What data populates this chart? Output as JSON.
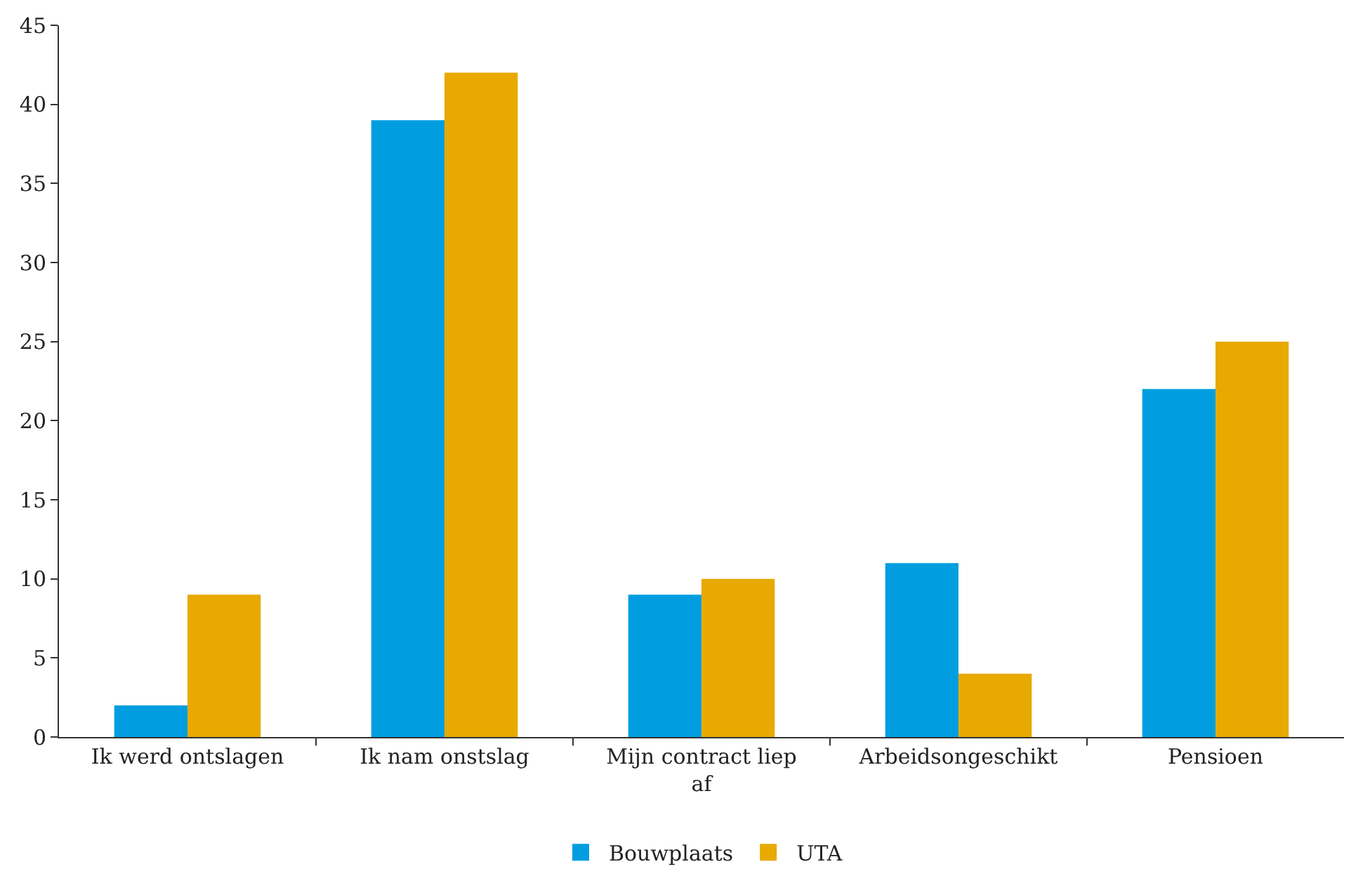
{
  "chart_data": {
    "type": "bar",
    "categories": [
      "Ik werd ontslagen",
      "Ik nam onstslag",
      "Mijn contract liep af",
      "Arbeidsongeschikt",
      "Pensioen"
    ],
    "series": [
      {
        "name": "Bouwplaats",
        "color": "#009ee0",
        "values": [
          2,
          39,
          9,
          11,
          22
        ]
      },
      {
        "name": "UTA",
        "color": "#e8a900",
        "values": [
          9,
          42,
          10,
          4,
          25
        ]
      }
    ],
    "ylim": [
      0,
      45
    ],
    "yticks": [
      0,
      5,
      10,
      15,
      20,
      25,
      30,
      35,
      40,
      45
    ],
    "legend": "bottom"
  }
}
